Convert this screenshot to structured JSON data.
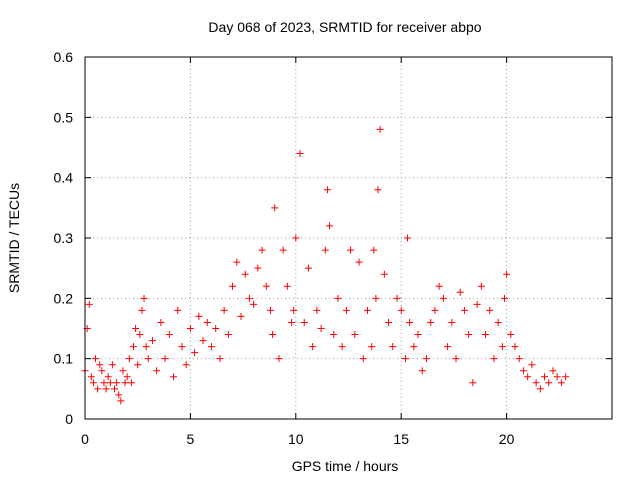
{
  "chart_data": {
    "type": "scatter",
    "title": "Day 068 of 2023, SRMTID for receiver abpo",
    "xlabel": "GPS time / hours",
    "ylabel": "SRMTID / TECUs",
    "xlim": [
      0,
      25
    ],
    "ylim": [
      0,
      0.6
    ],
    "xticks": [
      0,
      5,
      10,
      15,
      20
    ],
    "xtick_labels": [
      "0",
      "5",
      "10",
      "15",
      "20"
    ],
    "yticks": [
      0,
      0.1,
      0.2,
      0.3,
      0.4,
      0.5,
      0.6
    ],
    "ytick_labels": [
      "0",
      "0.1",
      "0.2",
      "0.3",
      "0.4",
      "0.5",
      "0.6"
    ],
    "grid": true,
    "marker": "+",
    "color": "#ff0000",
    "series": [
      {
        "name": "SRMTID",
        "x": [
          0.0,
          0.1,
          0.2,
          0.3,
          0.4,
          0.5,
          0.6,
          0.7,
          0.8,
          0.9,
          1.0,
          1.1,
          1.2,
          1.3,
          1.4,
          1.5,
          1.6,
          1.7,
          1.8,
          1.9,
          2.0,
          2.1,
          2.2,
          2.3,
          2.4,
          2.5,
          2.6,
          2.7,
          2.8,
          2.9,
          3.0,
          3.2,
          3.4,
          3.6,
          3.8,
          4.0,
          4.2,
          4.4,
          4.6,
          4.8,
          5.0,
          5.2,
          5.4,
          5.6,
          5.8,
          6.0,
          6.2,
          6.4,
          6.6,
          6.8,
          7.0,
          7.2,
          7.4,
          7.6,
          7.8,
          8.0,
          8.2,
          8.4,
          8.6,
          8.8,
          8.9,
          9.0,
          9.2,
          9.4,
          9.6,
          9.8,
          9.9,
          10.0,
          10.2,
          10.4,
          10.6,
          10.8,
          11.0,
          11.2,
          11.4,
          11.5,
          11.6,
          11.8,
          12.0,
          12.2,
          12.4,
          12.6,
          12.8,
          13.0,
          13.2,
          13.4,
          13.6,
          13.7,
          13.8,
          13.9,
          14.0,
          14.2,
          14.4,
          14.6,
          14.8,
          15.0,
          15.2,
          15.3,
          15.4,
          15.6,
          15.8,
          16.0,
          16.2,
          16.4,
          16.6,
          16.8,
          17.0,
          17.2,
          17.4,
          17.6,
          17.8,
          18.0,
          18.2,
          18.4,
          18.6,
          18.8,
          19.0,
          19.2,
          19.4,
          19.6,
          19.8,
          19.9,
          20.0,
          20.2,
          20.4,
          20.6,
          20.8,
          21.0,
          21.2,
          21.4,
          21.6,
          21.8,
          22.0,
          22.2,
          22.4,
          22.6,
          22.8
        ],
        "y": [
          0.08,
          0.15,
          0.19,
          0.07,
          0.06,
          0.1,
          0.05,
          0.09,
          0.08,
          0.06,
          0.05,
          0.07,
          0.06,
          0.09,
          0.05,
          0.06,
          0.04,
          0.03,
          0.08,
          0.06,
          0.07,
          0.1,
          0.06,
          0.12,
          0.15,
          0.09,
          0.14,
          0.18,
          0.2,
          0.12,
          0.1,
          0.13,
          0.08,
          0.16,
          0.1,
          0.14,
          0.07,
          0.18,
          0.12,
          0.09,
          0.15,
          0.11,
          0.17,
          0.13,
          0.16,
          0.12,
          0.15,
          0.1,
          0.18,
          0.14,
          0.22,
          0.26,
          0.17,
          0.24,
          0.2,
          0.19,
          0.25,
          0.28,
          0.22,
          0.18,
          0.14,
          0.35,
          0.1,
          0.28,
          0.22,
          0.16,
          0.18,
          0.3,
          0.44,
          0.16,
          0.25,
          0.12,
          0.18,
          0.15,
          0.28,
          0.38,
          0.32,
          0.14,
          0.2,
          0.12,
          0.18,
          0.28,
          0.14,
          0.26,
          0.1,
          0.18,
          0.12,
          0.28,
          0.2,
          0.38,
          0.48,
          0.24,
          0.16,
          0.12,
          0.2,
          0.18,
          0.1,
          0.3,
          0.16,
          0.12,
          0.14,
          0.08,
          0.1,
          0.16,
          0.18,
          0.22,
          0.2,
          0.12,
          0.16,
          0.1,
          0.21,
          0.18,
          0.14,
          0.06,
          0.19,
          0.22,
          0.14,
          0.18,
          0.1,
          0.16,
          0.12,
          0.2,
          0.24,
          0.14,
          0.12,
          0.1,
          0.08,
          0.07,
          0.09,
          0.06,
          0.05,
          0.07,
          0.06,
          0.08,
          0.07,
          0.06,
          0.07
        ]
      }
    ]
  }
}
